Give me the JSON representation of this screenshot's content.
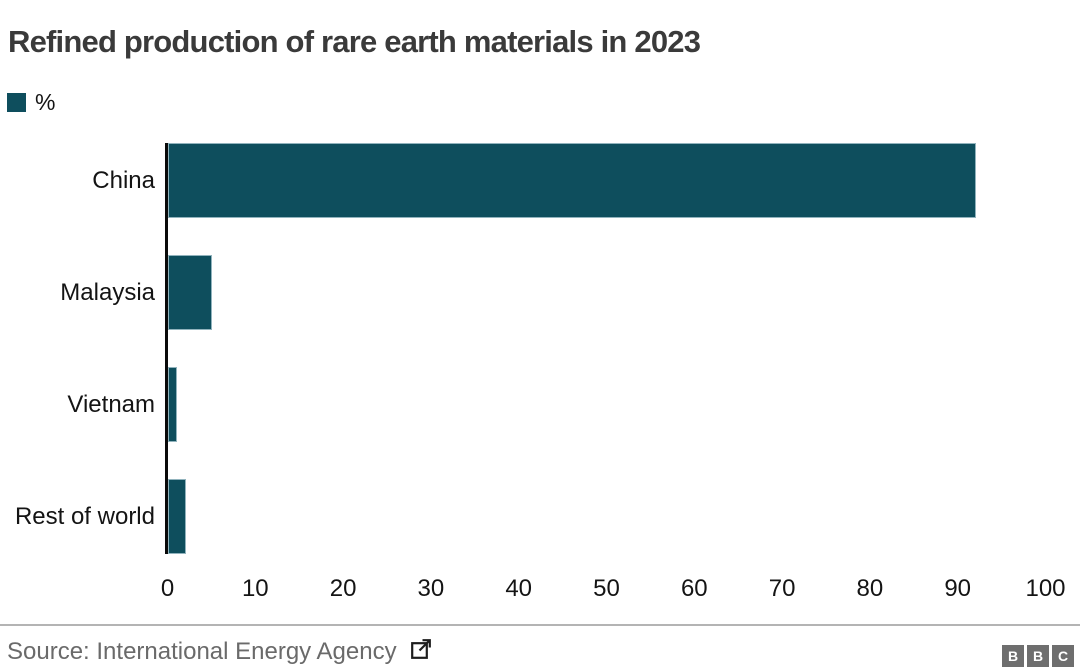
{
  "chart_data": {
    "type": "bar",
    "orientation": "horizontal",
    "title": "Refined production of rare earth materials in 2023",
    "unit_label": "%",
    "categories": [
      "China",
      "Malaysia",
      "Vietnam",
      "Rest of world"
    ],
    "values": [
      92,
      5,
      1,
      2
    ],
    "xlim": [
      0,
      100
    ],
    "x_ticks": [
      0,
      10,
      20,
      30,
      40,
      50,
      60,
      70,
      80,
      90,
      100
    ],
    "grid": false,
    "legend_position": "top-left",
    "bar_color": "#0e4e5d"
  },
  "footer": {
    "source": "Source: International Energy Agency",
    "external_link_icon": "external-link-icon",
    "logo_letters": [
      "B",
      "B",
      "C"
    ],
    "logo_color": "#6e6e6e"
  }
}
